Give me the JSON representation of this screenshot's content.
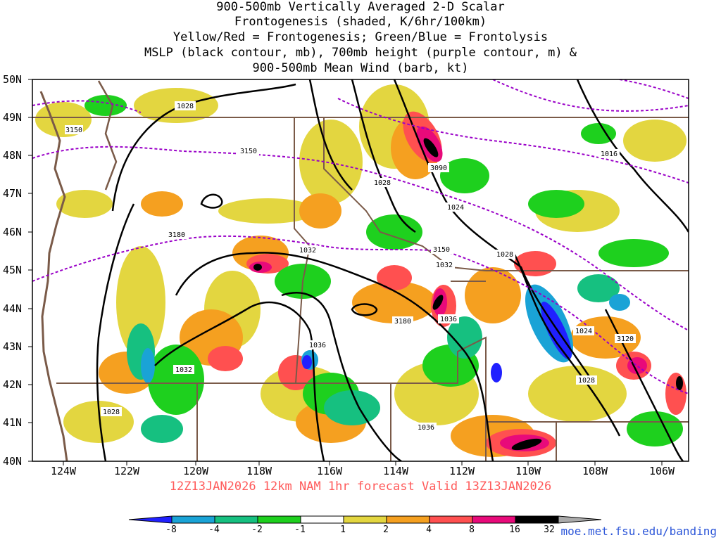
{
  "title_lines": [
    "900-500mb Vertically Averaged 2-D Scalar",
    "Frontogenesis (shaded, K/6hr/100km)",
    "Yellow/Red = Frontogenesis;  Green/Blue = Frontolysis",
    "MSLP (black contour, mb), 700mb height (purple contour, m) &",
    "900-500mb Mean Wind (barb, kt)"
  ],
  "valid_text": "12Z13JAN2026 12km NAM 1hr forecast Valid 13Z13JAN2026",
  "credit": "moe.met.fsu.edu/banding",
  "lat_labels": [
    "50N",
    "49N",
    "48N",
    "47N",
    "46N",
    "45N",
    "44N",
    "43N",
    "42N",
    "41N",
    "40N"
  ],
  "lon_labels": [
    "124W",
    "122W",
    "120W",
    "118W",
    "116W",
    "114W",
    "112W",
    "110W",
    "108W",
    "106W"
  ],
  "colorbar": {
    "labels": [
      "-8",
      "-4",
      "-2",
      "-1",
      "1",
      "2",
      "4",
      "8",
      "16",
      "32"
    ],
    "colors": [
      "#2020ff",
      "#1aa3d6",
      "#16c080",
      "#1ed01e",
      "#ffffff",
      "#e3d640",
      "#f5a020",
      "#ff5050",
      "#e80a7a",
      "#000000",
      "#aaaaaa"
    ]
  },
  "contour_labels": {
    "mslp": [
      "1028",
      "1028",
      "1016",
      "1024",
      "1028",
      "1032",
      "1032",
      "1036",
      "1036",
      "1024",
      "1028",
      "1032",
      "1028",
      "1036"
    ],
    "height": [
      "3150",
      "3150",
      "3090",
      "3180",
      "3150",
      "3180",
      "3120"
    ]
  },
  "colors": {
    "mslp": "#000000",
    "height": "#9a00c8",
    "borders": "#7a5a48",
    "coast": "#7a5a48"
  }
}
